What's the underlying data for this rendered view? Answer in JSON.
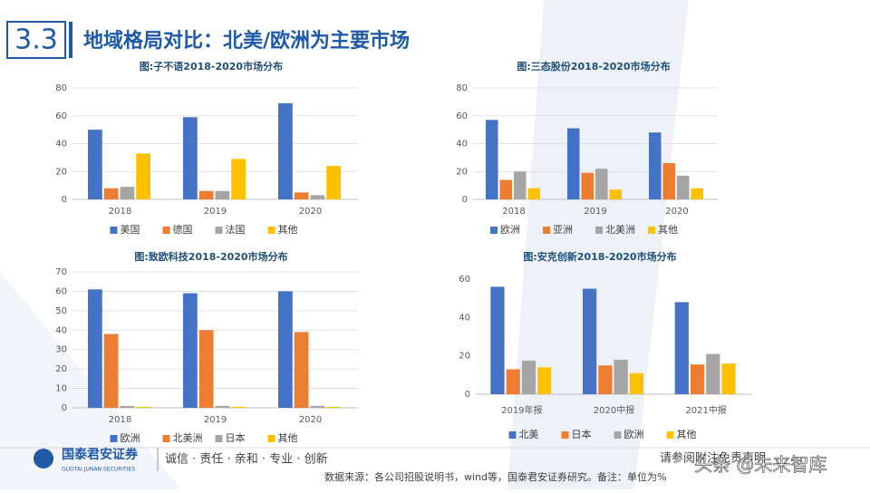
{
  "header": {
    "section": "3.3",
    "title": "地域格局对比：北美/欧洲为主要市场"
  },
  "chart_data": [
    {
      "type": "bar",
      "title": "图:子不语2018-2020市场分布",
      "categories": [
        "2018",
        "2019",
        "2020"
      ],
      "series": [
        {
          "name": "美国",
          "color": "#4472c4",
          "values": [
            50,
            59,
            69
          ]
        },
        {
          "name": "德国",
          "color": "#ed7d31",
          "values": [
            8,
            6,
            5
          ]
        },
        {
          "name": "法国",
          "color": "#a5a5a5",
          "values": [
            9,
            6,
            3
          ]
        },
        {
          "name": "其他",
          "color": "#ffc000",
          "values": [
            33,
            29,
            24
          ]
        }
      ],
      "ylim": [
        0,
        80
      ],
      "yticks": [
        0,
        20,
        40,
        60,
        80
      ],
      "grid": true,
      "legend": "bottom"
    },
    {
      "type": "bar",
      "title": "图:三态股份2018-2020市场分布",
      "categories": [
        "2018",
        "2019",
        "2020"
      ],
      "series": [
        {
          "name": "欧洲",
          "color": "#4472c4",
          "values": [
            57,
            51,
            48
          ]
        },
        {
          "name": "亚洲",
          "color": "#ed7d31",
          "values": [
            14,
            19,
            26
          ]
        },
        {
          "name": "北美洲",
          "color": "#a5a5a5",
          "values": [
            20,
            22,
            17
          ]
        },
        {
          "name": "其他",
          "color": "#ffc000",
          "values": [
            8,
            7,
            8
          ]
        }
      ],
      "ylim": [
        0,
        80
      ],
      "yticks": [
        0,
        20,
        40,
        60,
        80
      ],
      "grid": true,
      "legend": "bottom"
    },
    {
      "type": "bar",
      "title": "图:致欧科技2018-2020市场分布",
      "categories": [
        "2018",
        "2019",
        "2020"
      ],
      "series": [
        {
          "name": "欧洲",
          "color": "#4472c4",
          "values": [
            61,
            59,
            60
          ]
        },
        {
          "name": "北美洲",
          "color": "#ed7d31",
          "values": [
            38,
            40,
            39
          ]
        },
        {
          "name": "日本",
          "color": "#a5a5a5",
          "values": [
            1,
            1,
            1
          ]
        },
        {
          "name": "其他",
          "color": "#ffc000",
          "values": [
            0.5,
            0.5,
            0.5
          ]
        }
      ],
      "ylim": [
        0,
        70
      ],
      "yticks": [
        0,
        10,
        20,
        30,
        40,
        50,
        60,
        70
      ],
      "grid": true,
      "legend": "bottom"
    },
    {
      "type": "bar",
      "title": "图:安克创新2018-2020市场分布",
      "categories": [
        "2019年报",
        "2020中报",
        "2021中报"
      ],
      "series": [
        {
          "name": "北美",
          "color": "#4472c4",
          "values": [
            56,
            55,
            48
          ]
        },
        {
          "name": "日本",
          "color": "#ed7d31",
          "values": [
            13,
            15,
            15.5
          ]
        },
        {
          "name": "欧洲",
          "color": "#a5a5a5",
          "values": [
            17.5,
            18,
            21
          ]
        },
        {
          "name": "其他",
          "color": "#ffc000",
          "values": [
            14,
            11,
            16
          ]
        }
      ],
      "ylim": [
        0,
        60
      ],
      "yticks": [
        0,
        20,
        40,
        60
      ],
      "grid": false,
      "legend": "bottom"
    }
  ],
  "footer": {
    "company": "国泰君安证券",
    "company_en": "GUOTAI JUNAN SECURITIES",
    "slogan": "诚信 · 责任 · 亲和 · 专业 · 创新",
    "source": "数据来源：各公司招股说明书，wind等，国泰君安证券研究。备注：单位为%",
    "disclaimer": "请参阅附注免责声明",
    "watermark": "头条 @未来智库"
  }
}
